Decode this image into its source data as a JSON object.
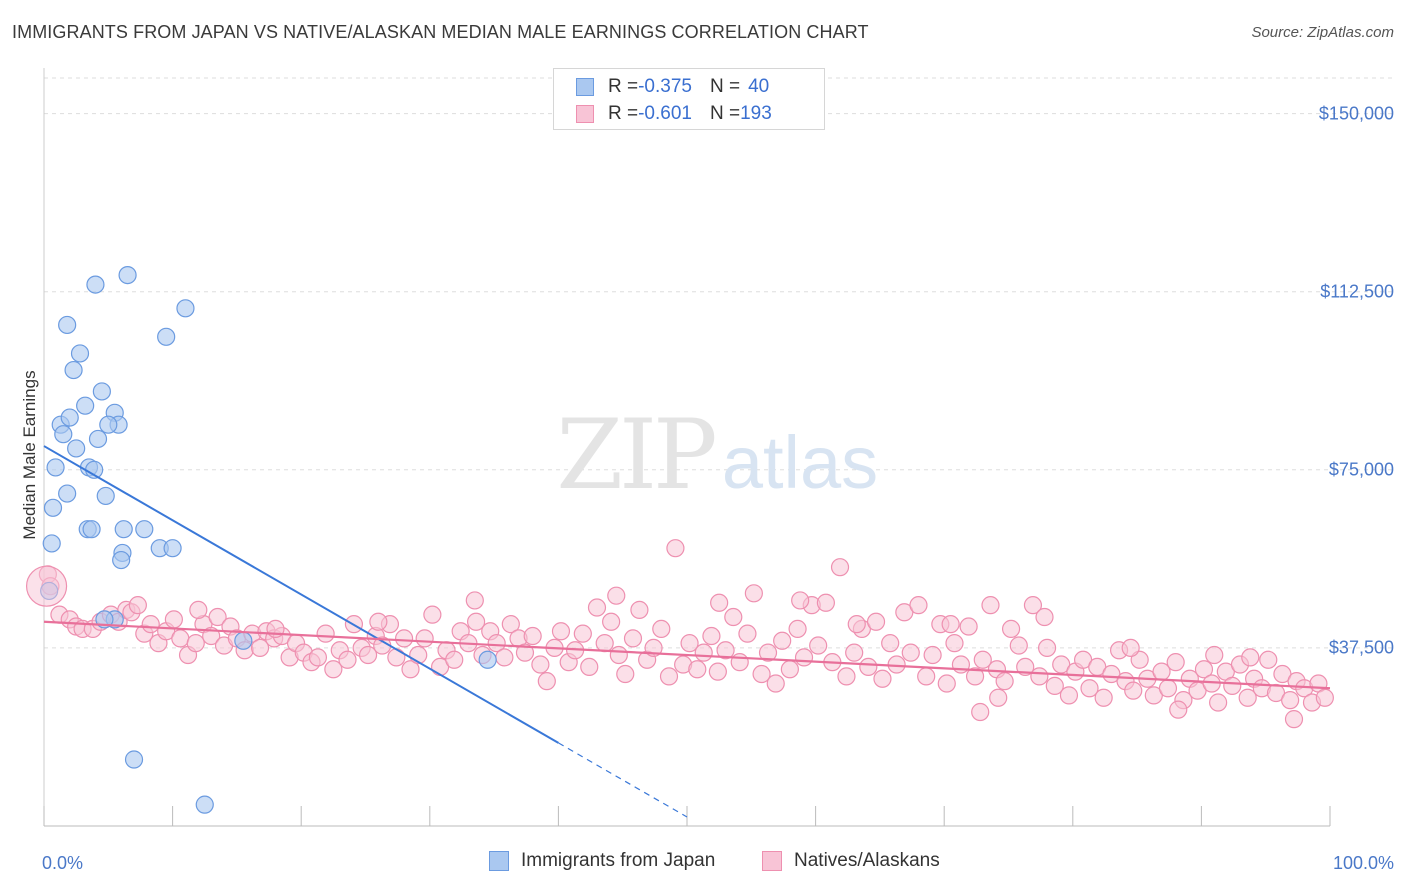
{
  "title": "IMMIGRANTS FROM JAPAN VS NATIVE/ALASKAN MEDIAN MALE EARNINGS CORRELATION CHART",
  "source": "Source: ZipAtlas.com",
  "watermark": {
    "zip": "ZIP",
    "atlas": "atlas"
  },
  "legend": {
    "rows": [
      {
        "r_label": "R = ",
        "r_value": "-0.375",
        "n_label": "N = ",
        "n_value": "40"
      },
      {
        "r_label": "R = ",
        "r_value": "-0.601",
        "n_label": "N = ",
        "n_value": "193"
      }
    ]
  },
  "colors": {
    "japan_fill": "#aac8f0",
    "japan_stroke": "#6b9be0",
    "japan_line": "#3a78d8",
    "native_fill": "#f8c4d6",
    "native_stroke": "#ee90b0",
    "native_line": "#e8709a",
    "tick_label": "#4a78c8",
    "grid": "#dddddd"
  },
  "chart_data": {
    "type": "scatter",
    "xlabel": "",
    "ylabel": "Median Male Earnings",
    "xlim": [
      0,
      100
    ],
    "ylim": [
      0,
      157500
    ],
    "x_tick_labels": [
      "0.0%",
      "100.0%"
    ],
    "y_ticks": [
      {
        "value": 37500,
        "label": "$37,500"
      },
      {
        "value": 75000,
        "label": "$75,000"
      },
      {
        "value": 112500,
        "label": "$112,500"
      },
      {
        "value": 150000,
        "label": "$150,000"
      }
    ],
    "grid": true,
    "legend_position": "top-center",
    "series": [
      {
        "name": "Immigrants from Japan",
        "color": "#6b9be0",
        "trend": {
          "x": [
            0,
            40
          ],
          "y": [
            80000,
            17500
          ],
          "dashed_to": [
            50,
            1900
          ]
        },
        "points": [
          [
            4,
            114000
          ],
          [
            6.5,
            116000
          ],
          [
            1.8,
            105500
          ],
          [
            11,
            109000
          ],
          [
            9.5,
            103000
          ],
          [
            2.8,
            99500
          ],
          [
            2.3,
            96000
          ],
          [
            4.5,
            91500
          ],
          [
            3.2,
            88500
          ],
          [
            1.3,
            84500
          ],
          [
            2.0,
            86000
          ],
          [
            1.5,
            82500
          ],
          [
            5.5,
            87000
          ],
          [
            5.8,
            84500
          ],
          [
            4.2,
            81500
          ],
          [
            5.0,
            84500
          ],
          [
            2.5,
            79500
          ],
          [
            0.9,
            75500
          ],
          [
            3.5,
            75500
          ],
          [
            3.9,
            75000
          ],
          [
            1.8,
            70000
          ],
          [
            4.8,
            69500
          ],
          [
            0.7,
            67000
          ],
          [
            3.4,
            62500
          ],
          [
            6.2,
            62500
          ],
          [
            7.8,
            62500
          ],
          [
            3.7,
            62500
          ],
          [
            0.6,
            59500
          ],
          [
            6.1,
            57500
          ],
          [
            6.0,
            56000
          ],
          [
            9.0,
            58500
          ],
          [
            10.0,
            58500
          ],
          [
            0.4,
            49500
          ],
          [
            5.5,
            43500
          ],
          [
            4.7,
            43500
          ],
          [
            15.5,
            39000
          ],
          [
            34.5,
            35000
          ],
          [
            7.0,
            14000
          ],
          [
            12.5,
            4500
          ],
          [
            0.2,
            50500
          ]
        ]
      },
      {
        "name": "Natives/Alaskans",
        "color": "#ee90b0",
        "trend": {
          "x": [
            0,
            100
          ],
          "y": [
            43000,
            29000
          ]
        },
        "points": [
          [
            0.3,
            53000
          ],
          [
            0.5,
            50500
          ],
          [
            1.2,
            44500
          ],
          [
            2.0,
            43500
          ],
          [
            2.5,
            42000
          ],
          [
            3.0,
            41500
          ],
          [
            3.8,
            41500
          ],
          [
            4.4,
            43000
          ],
          [
            5.2,
            44500
          ],
          [
            5.8,
            43000
          ],
          [
            6.4,
            45500
          ],
          [
            6.8,
            45000
          ],
          [
            7.3,
            46500
          ],
          [
            7.8,
            40500
          ],
          [
            8.3,
            42500
          ],
          [
            8.9,
            38500
          ],
          [
            9.5,
            41000
          ],
          [
            10.1,
            43500
          ],
          [
            10.6,
            39500
          ],
          [
            11.2,
            36000
          ],
          [
            11.8,
            38500
          ],
          [
            12.4,
            42500
          ],
          [
            13.0,
            40000
          ],
          [
            13.5,
            44000
          ],
          [
            14.0,
            38000
          ],
          [
            14.5,
            42000
          ],
          [
            15.0,
            39500
          ],
          [
            15.6,
            37000
          ],
          [
            16.2,
            40500
          ],
          [
            16.8,
            37500
          ],
          [
            17.3,
            41000
          ],
          [
            17.9,
            39500
          ],
          [
            18.5,
            40000
          ],
          [
            19.1,
            35500
          ],
          [
            19.6,
            38500
          ],
          [
            20.2,
            36500
          ],
          [
            20.8,
            34500
          ],
          [
            21.3,
            35500
          ],
          [
            21.9,
            40500
          ],
          [
            22.5,
            33000
          ],
          [
            23.0,
            37000
          ],
          [
            23.6,
            35000
          ],
          [
            24.1,
            42500
          ],
          [
            24.7,
            37500
          ],
          [
            25.2,
            36000
          ],
          [
            25.8,
            40000
          ],
          [
            26.3,
            38000
          ],
          [
            26.9,
            42500
          ],
          [
            27.4,
            35500
          ],
          [
            28.0,
            39500
          ],
          [
            28.5,
            33000
          ],
          [
            29.1,
            36000
          ],
          [
            29.6,
            39500
          ],
          [
            30.2,
            44500
          ],
          [
            30.8,
            33500
          ],
          [
            31.3,
            37000
          ],
          [
            31.9,
            35000
          ],
          [
            32.4,
            41000
          ],
          [
            33.0,
            38500
          ],
          [
            33.6,
            43000
          ],
          [
            34.1,
            36000
          ],
          [
            34.7,
            41000
          ],
          [
            35.2,
            38500
          ],
          [
            35.8,
            35500
          ],
          [
            36.3,
            42500
          ],
          [
            36.9,
            39500
          ],
          [
            37.4,
            36500
          ],
          [
            38.0,
            40000
          ],
          [
            38.6,
            34000
          ],
          [
            39.1,
            30500
          ],
          [
            39.7,
            37500
          ],
          [
            40.2,
            41000
          ],
          [
            40.8,
            34500
          ],
          [
            41.3,
            37000
          ],
          [
            41.9,
            40500
          ],
          [
            42.4,
            33500
          ],
          [
            43.0,
            46000
          ],
          [
            43.6,
            38500
          ],
          [
            44.1,
            43000
          ],
          [
            44.7,
            36000
          ],
          [
            45.2,
            32000
          ],
          [
            45.8,
            39500
          ],
          [
            46.3,
            45500
          ],
          [
            46.9,
            35000
          ],
          [
            47.4,
            37500
          ],
          [
            48.0,
            41500
          ],
          [
            48.6,
            31500
          ],
          [
            49.1,
            58500
          ],
          [
            49.7,
            34000
          ],
          [
            50.2,
            38500
          ],
          [
            50.8,
            33000
          ],
          [
            51.3,
            36500
          ],
          [
            51.9,
            40000
          ],
          [
            52.4,
            32500
          ],
          [
            53.0,
            37000
          ],
          [
            53.6,
            44000
          ],
          [
            54.1,
            34500
          ],
          [
            54.7,
            40500
          ],
          [
            55.2,
            49000
          ],
          [
            55.8,
            32000
          ],
          [
            56.3,
            36500
          ],
          [
            56.9,
            30000
          ],
          [
            57.4,
            39000
          ],
          [
            58.0,
            33000
          ],
          [
            58.6,
            41500
          ],
          [
            59.1,
            35500
          ],
          [
            59.7,
            46500
          ],
          [
            60.2,
            38000
          ],
          [
            60.8,
            47000
          ],
          [
            61.3,
            34500
          ],
          [
            61.9,
            54500
          ],
          [
            62.4,
            31500
          ],
          [
            63.0,
            36500
          ],
          [
            63.6,
            41500
          ],
          [
            64.1,
            33500
          ],
          [
            64.7,
            43000
          ],
          [
            65.2,
            31000
          ],
          [
            65.8,
            38500
          ],
          [
            66.3,
            34000
          ],
          [
            66.9,
            45000
          ],
          [
            67.4,
            36500
          ],
          [
            68.0,
            46500
          ],
          [
            68.6,
            31500
          ],
          [
            69.1,
            36000
          ],
          [
            69.7,
            42500
          ],
          [
            70.2,
            30000
          ],
          [
            70.8,
            38500
          ],
          [
            71.3,
            34000
          ],
          [
            71.9,
            42000
          ],
          [
            72.4,
            31500
          ],
          [
            73.0,
            35000
          ],
          [
            73.6,
            46500
          ],
          [
            74.1,
            33000
          ],
          [
            74.7,
            30500
          ],
          [
            75.2,
            41500
          ],
          [
            75.8,
            38000
          ],
          [
            76.3,
            33500
          ],
          [
            76.9,
            46500
          ],
          [
            77.4,
            31500
          ],
          [
            78.0,
            37500
          ],
          [
            78.6,
            29500
          ],
          [
            79.1,
            34000
          ],
          [
            79.7,
            27500
          ],
          [
            80.2,
            32500
          ],
          [
            80.8,
            35000
          ],
          [
            81.3,
            29000
          ],
          [
            81.9,
            33500
          ],
          [
            82.4,
            27000
          ],
          [
            83.0,
            32000
          ],
          [
            83.6,
            37000
          ],
          [
            84.1,
            30500
          ],
          [
            84.7,
            28500
          ],
          [
            85.2,
            35000
          ],
          [
            85.8,
            31000
          ],
          [
            86.3,
            27500
          ],
          [
            86.9,
            32500
          ],
          [
            87.4,
            29000
          ],
          [
            88.0,
            34500
          ],
          [
            88.6,
            26500
          ],
          [
            89.1,
            31000
          ],
          [
            89.7,
            28500
          ],
          [
            90.2,
            33000
          ],
          [
            90.8,
            30000
          ],
          [
            91.3,
            26000
          ],
          [
            91.9,
            32500
          ],
          [
            92.4,
            29500
          ],
          [
            93.0,
            34000
          ],
          [
            93.6,
            27000
          ],
          [
            94.1,
            31000
          ],
          [
            94.7,
            29000
          ],
          [
            95.2,
            35000
          ],
          [
            95.8,
            28000
          ],
          [
            96.3,
            32000
          ],
          [
            96.9,
            26500
          ],
          [
            97.4,
            30500
          ],
          [
            98.0,
            29000
          ],
          [
            98.6,
            26000
          ],
          [
            99.1,
            30000
          ],
          [
            99.6,
            27000
          ],
          [
            12.0,
            45500
          ],
          [
            18.0,
            41500
          ],
          [
            26.0,
            43000
          ],
          [
            33.5,
            47500
          ],
          [
            44.5,
            48500
          ],
          [
            52.5,
            47000
          ],
          [
            58.8,
            47500
          ],
          [
            63.2,
            42500
          ],
          [
            70.5,
            42500
          ],
          [
            77.8,
            44000
          ],
          [
            84.5,
            37500
          ],
          [
            93.8,
            35500
          ],
          [
            72.8,
            24000
          ],
          [
            74.2,
            27000
          ],
          [
            88.2,
            24500
          ],
          [
            97.2,
            22500
          ],
          [
            91.0,
            36000
          ]
        ]
      }
    ]
  },
  "bottom_legend": [
    {
      "label": "Immigrants from Japan"
    },
    {
      "label": "Natives/Alaskans"
    }
  ]
}
